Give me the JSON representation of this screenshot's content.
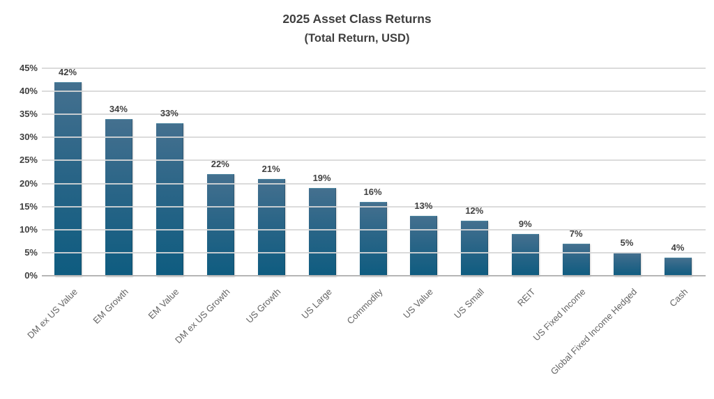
{
  "title": {
    "line1": "2025 Asset Class Returns",
    "line2": "(Total Return, USD)"
  },
  "chart_data": {
    "type": "bar",
    "title": "2025 Asset Class Returns",
    "subtitle": "(Total Return, USD)",
    "categories": [
      "DM ex US Value",
      "EM Growth",
      "EM Value",
      "DM ex US Growth",
      "US Growth",
      "US Large",
      "Commodity",
      "US Value",
      "US Small",
      "REIT",
      "US Fixed Income",
      "Global Fixed Income Hedged",
      "Cash"
    ],
    "values": [
      42,
      34,
      33,
      22,
      21,
      19,
      16,
      13,
      12,
      9,
      7,
      5,
      4
    ],
    "bar_labels": [
      "42%",
      "34%",
      "33%",
      "22%",
      "21%",
      "19%",
      "16%",
      "13%",
      "12%",
      "9%",
      "7%",
      "5%",
      "4%"
    ],
    "xlabel": "",
    "ylabel": "",
    "ylim": [
      0,
      45
    ],
    "ytick_step": 5,
    "yticks": [
      "0%",
      "5%",
      "10%",
      "15%",
      "20%",
      "25%",
      "30%",
      "35%",
      "40%",
      "45%"
    ],
    "grid": true,
    "gridlines_over_bars": true,
    "legend": false,
    "colors": {
      "bar_gradient_top": "#44708f",
      "bar_gradient_bottom": "#0e5c80",
      "title_text": "#3f3f3f",
      "tick_text": "#404040",
      "category_text": "#646464",
      "gridline": "#d7d7d7",
      "axis_line": "#b5b5b5",
      "background": "#ffffff"
    }
  }
}
